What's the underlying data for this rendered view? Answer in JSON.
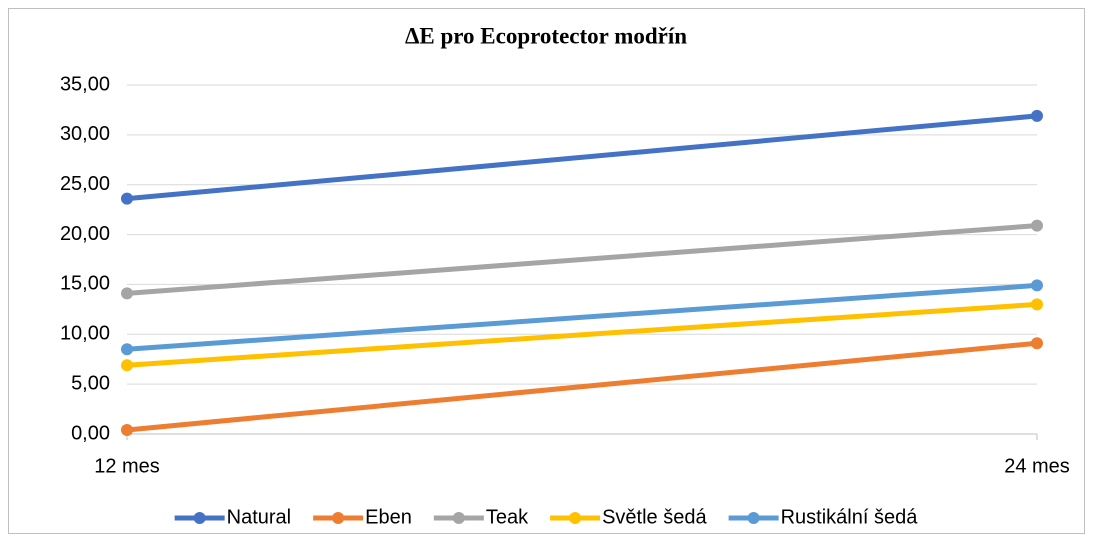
{
  "chart_data": {
    "type": "line",
    "title": "ΔE pro Ecoprotector modřín",
    "categories": [
      "12 mes",
      "24 mes"
    ],
    "series": [
      {
        "name": "Natural",
        "color": "#4472c4",
        "values": [
          23.6,
          31.9
        ]
      },
      {
        "name": "Eben",
        "color": "#ed7d31",
        "values": [
          0.4,
          9.1
        ]
      },
      {
        "name": "Teak",
        "color": "#a5a5a5",
        "values": [
          14.1,
          20.9
        ]
      },
      {
        "name": "Světle šedá",
        "color": "#ffc000",
        "values": [
          6.9,
          13.0
        ]
      },
      {
        "name": "Rustikální šedá",
        "color": "#5b9bd5",
        "values": [
          8.5,
          14.9
        ]
      }
    ],
    "ylim": [
      0,
      35
    ],
    "yticks": [
      {
        "value": 0,
        "label": "0,00"
      },
      {
        "value": 5,
        "label": "5,00"
      },
      {
        "value": 10,
        "label": "10,00"
      },
      {
        "value": 15,
        "label": "15,00"
      },
      {
        "value": 20,
        "label": "20,00"
      },
      {
        "value": 25,
        "label": "25,00"
      },
      {
        "value": 30,
        "label": "30,00"
      },
      {
        "value": 35,
        "label": "35,00"
      }
    ],
    "grid": true,
    "legend": "bottom"
  }
}
